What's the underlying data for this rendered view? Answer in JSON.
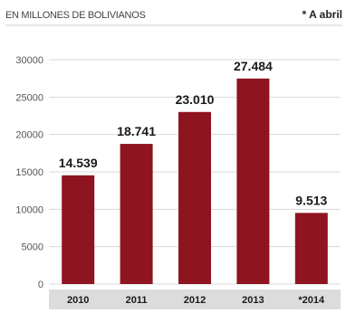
{
  "header": {
    "subtitle": "EN MILLONES DE BOLIVIANOS",
    "note": "* A abril"
  },
  "colors": {
    "bar": "#8e1420",
    "grid": "#d9d9d9",
    "axis_band": "#dcdcdc"
  },
  "chart_data": {
    "type": "bar",
    "categories": [
      "2010",
      "2011",
      "2012",
      "2013",
      "*2014"
    ],
    "values": [
      14539,
      18741,
      23010,
      27484,
      9513
    ],
    "value_labels": [
      "14.539",
      "18.741",
      "23.010",
      "27.484",
      "9.513"
    ],
    "yticks": [
      0,
      5000,
      10000,
      15000,
      20000,
      25000,
      30000
    ],
    "ylim": [
      0,
      30000
    ],
    "grid": true,
    "legend": "none",
    "xlabel": "",
    "ylabel": ""
  }
}
